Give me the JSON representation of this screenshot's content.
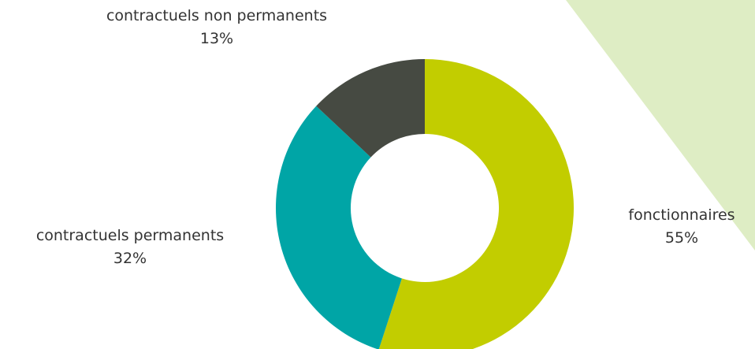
{
  "chart_data": {
    "type": "donut",
    "title": "",
    "slices": [
      {
        "label": "fonctionnaires",
        "value": 55,
        "display": "55%",
        "color": "#c2cd00"
      },
      {
        "label": "contractuels permanents",
        "value": 32,
        "display": "32%",
        "color": "#00a5a6"
      },
      {
        "label": "contractuels non permanents",
        "value": 13,
        "display": "13%",
        "color": "#464a42"
      }
    ],
    "legend": "none",
    "start": "top",
    "direction": "clockwise"
  },
  "colors": {
    "background_accent": "#deedc4"
  }
}
